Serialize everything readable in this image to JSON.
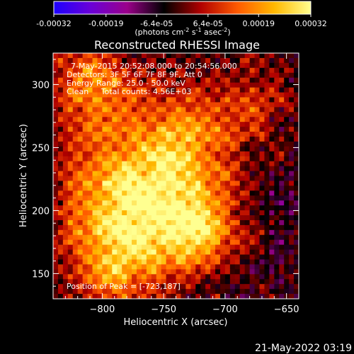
{
  "chart_data": {
    "type": "heatmap",
    "title": "Reconstructed RHESSI Image",
    "xlabel": "Heliocentric X (arcsec)",
    "ylabel": "Heliocentric Y (arcsec)",
    "xlim": [
      -840,
      -640
    ],
    "ylim": [
      130,
      325
    ],
    "x_ticks": [
      -800,
      -750,
      -700,
      -650
    ],
    "y_ticks": [
      150,
      200,
      250,
      300
    ],
    "x_tick_labels": [
      "−800",
      "−750",
      "−700",
      "−650"
    ],
    "y_tick_labels": [
      "150",
      "200",
      "250",
      "300"
    ],
    "colorbar": {
      "ticks": [
        -0.00032,
        -0.00019,
        -6.4e-05,
        6.4e-05,
        0.00019,
        0.00032
      ],
      "tick_labels": [
        "-0.00032",
        "-0.00019",
        "-6.4e-05",
        "6.4e-05",
        "0.00019",
        "0.00032"
      ],
      "unit_parts": [
        "(photons cm",
        "-2",
        " s",
        "-1",
        " asec",
        "-2",
        ")"
      ],
      "colors": [
        "#1d00ff",
        "#6a00d8",
        "#9a008a",
        "#000000",
        "#b00000",
        "#ff5a00",
        "#ffb800",
        "#ffff90"
      ]
    },
    "annotations": [
      "7-May-2015 20:52:08.000 to 20:54:56.000",
      "Detectors: 3F 5F 6F 7F 8F 9F, Att 0",
      "Energy Range: 25.0 - 50.0 keV",
      "Clean     Total counts: 4.56E+03"
    ],
    "peak_label": "Position of Peak = [-723,187]",
    "sources": [
      {
        "x": -775,
        "y": 210,
        "sigma": 40,
        "amp": 1.0
      },
      {
        "x": -720,
        "y": 185,
        "sigma": 22,
        "amp": 0.7
      },
      {
        "x": -810,
        "y": 300,
        "sigma": 25,
        "amp": 0.6
      },
      {
        "x": -730,
        "y": 260,
        "sigma": 30,
        "amp": 0.5
      },
      {
        "x": -790,
        "y": 155,
        "sigma": 25,
        "amp": 0.5
      },
      {
        "x": -670,
        "y": 290,
        "sigma": 25,
        "amp": 0.3
      }
    ],
    "noise_amplitude": 0.55,
    "grid": false
  },
  "footer": {
    "timestamp": "21-May-2022 03:19"
  }
}
